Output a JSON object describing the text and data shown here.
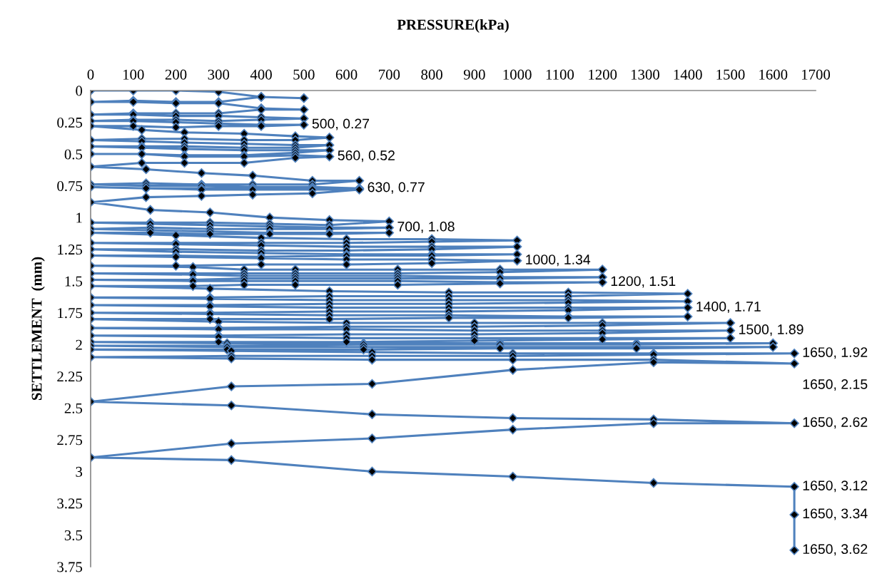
{
  "chart_data": {
    "type": "line",
    "xlabel": "PRESSURE(kPa)",
    "ylabel": "SETTLEMENT  (mm)",
    "xlim": [
      0,
      1700
    ],
    "xticks": [
      0,
      100,
      200,
      300,
      400,
      500,
      600,
      700,
      800,
      900,
      1000,
      1100,
      1200,
      1300,
      1400,
      1500,
      1600,
      1700
    ],
    "ylim": [
      3.75,
      0
    ],
    "yticks": [
      0,
      0.25,
      0.5,
      0.75,
      1,
      1.25,
      1.5,
      1.75,
      2,
      2.25,
      2.5,
      2.75,
      3,
      3.25,
      3.5,
      3.75
    ],
    "grid": false,
    "marker": "diamond",
    "line_style": "solid",
    "series": [
      {
        "color": "#4f81bd",
        "x": [
          0,
          100,
          200,
          300,
          400,
          500,
          400,
          300,
          200,
          100,
          0,
          100,
          200,
          300,
          400,
          500,
          400,
          300,
          200,
          100,
          0,
          100,
          200,
          300,
          400,
          500,
          400,
          300,
          200,
          100,
          0,
          100,
          200,
          300,
          400,
          500,
          400,
          300,
          200,
          100,
          0,
          120,
          220,
          360,
          480,
          560,
          480,
          360,
          220,
          120,
          0,
          120,
          220,
          360,
          480,
          560,
          480,
          360,
          220,
          120,
          0,
          120,
          220,
          360,
          480,
          560,
          480,
          360,
          220,
          120,
          0,
          120,
          220,
          360,
          480,
          560,
          480,
          360,
          220,
          120,
          0,
          130,
          260,
          380,
          520,
          630,
          520,
          380,
          260,
          130,
          0,
          130,
          260,
          380,
          520,
          630,
          520,
          380,
          260,
          130,
          0,
          130,
          260,
          380,
          520,
          630,
          520,
          380,
          260,
          130,
          0,
          140,
          280,
          420,
          560,
          700,
          560,
          420,
          280,
          140,
          0,
          140,
          280,
          420,
          560,
          700,
          560,
          420,
          280,
          140,
          0,
          140,
          280,
          420,
          560,
          700,
          560,
          420,
          280,
          140,
          0,
          200,
          400,
          600,
          800,
          1000,
          800,
          600,
          400,
          200,
          0,
          200,
          400,
          600,
          800,
          1000,
          800,
          600,
          400,
          200,
          0,
          200,
          400,
          600,
          800,
          1000,
          800,
          600,
          400,
          200,
          0,
          200,
          400,
          600,
          800,
          1000,
          800,
          600,
          400,
          200,
          0,
          240,
          360,
          480,
          720,
          960,
          1200,
          960,
          720,
          480,
          360,
          240,
          0,
          240,
          360,
          480,
          720,
          960,
          1200,
          960,
          720,
          480,
          360,
          240,
          0,
          240,
          360,
          480,
          720,
          960,
          1200,
          960,
          720,
          480,
          360,
          240,
          0,
          280,
          560,
          840,
          1120,
          1400,
          1120,
          840,
          560,
          280,
          0,
          280,
          560,
          840,
          1120,
          1400,
          1120,
          840,
          560,
          280,
          0,
          280,
          560,
          840,
          1120,
          1400,
          1120,
          840,
          560,
          280,
          0,
          280,
          560,
          840,
          1120,
          1400,
          1120,
          840,
          560,
          280,
          0,
          300,
          600,
          900,
          1200,
          1500,
          1200,
          900,
          600,
          300,
          0,
          300,
          600,
          900,
          1200,
          1500,
          1200,
          900,
          600,
          300,
          0,
          300,
          600,
          900,
          1200,
          1500,
          1200,
          900,
          600,
          300,
          0,
          320,
          640,
          960,
          1280,
          1600,
          1280,
          960,
          640,
          320,
          0,
          320,
          640,
          960,
          1280,
          1600,
          1280,
          960,
          640,
          320,
          0,
          330,
          660,
          990,
          1320,
          1650,
          1320,
          990,
          660,
          330,
          0,
          330,
          660,
          990,
          1320,
          1650,
          1320,
          990,
          660,
          330,
          0,
          330,
          660,
          990,
          1320,
          1650,
          1320,
          990,
          660,
          330,
          0,
          330,
          660,
          990,
          1320,
          1650,
          1650,
          1650
        ],
        "values": [
          0,
          0,
          0,
          0.01,
          0.05,
          0.06,
          0.05,
          0.09,
          0.09,
          0.08,
          0.09,
          0.09,
          0.1,
          0.1,
          0.14,
          0.15,
          0.15,
          0.18,
          0.18,
          0.18,
          0.19,
          0.19,
          0.2,
          0.2,
          0.21,
          0.22,
          0.23,
          0.24,
          0.23,
          0.23,
          0.24,
          0.24,
          0.25,
          0.26,
          0.27,
          0.27,
          0.28,
          0.28,
          0.29,
          0.28,
          0.28,
          0.31,
          0.33,
          0.34,
          0.36,
          0.37,
          0.39,
          0.39,
          0.38,
          0.38,
          0.39,
          0.4,
          0.41,
          0.42,
          0.43,
          0.43,
          0.45,
          0.45,
          0.44,
          0.44,
          0.44,
          0.45,
          0.46,
          0.47,
          0.47,
          0.47,
          0.49,
          0.51,
          0.51,
          0.5,
          0.5,
          0.5,
          0.52,
          0.52,
          0.51,
          0.52,
          0.53,
          0.57,
          0.57,
          0.57,
          0.6,
          0.62,
          0.65,
          0.67,
          0.71,
          0.71,
          0.74,
          0.74,
          0.74,
          0.73,
          0.74,
          0.75,
          0.75,
          0.76,
          0.76,
          0.77,
          0.77,
          0.77,
          0.77,
          0.77,
          0.76,
          0.77,
          0.78,
          0.78,
          0.78,
          0.78,
          0.81,
          0.82,
          0.83,
          0.84,
          0.88,
          0.94,
          0.96,
          1.0,
          1.02,
          1.03,
          1.06,
          1.05,
          1.04,
          1.04,
          1.04,
          1.05,
          1.06,
          1.07,
          1.08,
          1.08,
          1.09,
          1.09,
          1.09,
          1.08,
          1.09,
          1.1,
          1.11,
          1.12,
          1.12,
          1.12,
          1.13,
          1.13,
          1.13,
          1.12,
          1.12,
          1.14,
          1.16,
          1.17,
          1.17,
          1.18,
          1.19,
          1.2,
          1.2,
          1.2,
          1.2,
          1.21,
          1.22,
          1.23,
          1.23,
          1.23,
          1.25,
          1.26,
          1.26,
          1.25,
          1.25,
          1.27,
          1.28,
          1.29,
          1.29,
          1.29,
          1.3,
          1.3,
          1.31,
          1.3,
          1.3,
          1.31,
          1.32,
          1.33,
          1.33,
          1.34,
          1.36,
          1.37,
          1.37,
          1.38,
          1.38,
          1.39,
          1.41,
          1.41,
          1.41,
          1.41,
          1.41,
          1.43,
          1.44,
          1.44,
          1.44,
          1.44,
          1.44,
          1.45,
          1.46,
          1.46,
          1.46,
          1.47,
          1.47,
          1.48,
          1.48,
          1.48,
          1.48,
          1.49,
          1.49,
          1.5,
          1.5,
          1.5,
          1.5,
          1.51,
          1.51,
          1.52,
          1.53,
          1.53,
          1.53,
          1.54,
          1.54,
          1.56,
          1.58,
          1.59,
          1.59,
          1.6,
          1.62,
          1.62,
          1.62,
          1.63,
          1.63,
          1.64,
          1.65,
          1.65,
          1.65,
          1.66,
          1.67,
          1.68,
          1.68,
          1.69,
          1.69,
          1.7,
          1.71,
          1.71,
          1.71,
          1.71,
          1.73,
          1.74,
          1.74,
          1.75,
          1.75,
          1.76,
          1.77,
          1.77,
          1.78,
          1.78,
          1.79,
          1.79,
          1.8,
          1.8,
          1.8,
          1.82,
          1.83,
          1.83,
          1.83,
          1.83,
          1.85,
          1.86,
          1.86,
          1.87,
          1.87,
          1.88,
          1.88,
          1.89,
          1.89,
          1.89,
          1.91,
          1.92,
          1.92,
          1.93,
          1.93,
          1.94,
          1.95,
          1.95,
          1.95,
          1.95,
          1.96,
          1.97,
          1.98,
          1.98,
          1.98,
          1.99,
          1.99,
          1.99,
          1.99,
          1.99,
          2.0,
          2.0,
          2.0,
          2.01,
          2.01,
          2.02,
          2.02,
          2.02,
          2.02,
          2.02,
          2.03,
          2.03,
          2.04,
          2.04,
          2.04,
          2.05,
          2.06,
          2.07,
          2.07,
          2.07,
          2.08,
          2.09,
          2.09,
          2.09,
          2.1,
          2.11,
          2.12,
          2.12,
          2.12,
          2.15,
          2.14,
          2.2,
          2.31,
          2.33,
          2.45,
          2.48,
          2.55,
          2.58,
          2.59,
          2.62,
          2.62,
          2.67,
          2.74,
          2.78,
          2.89,
          2.91,
          3.0,
          3.04,
          3.09,
          3.12,
          3.34,
          3.62
        ]
      }
    ],
    "annotations": [
      {
        "text": "500, 0.27",
        "x": 500,
        "y": 0.27
      },
      {
        "text": "560, 0.52",
        "x": 560,
        "y": 0.52
      },
      {
        "text": "630, 0.77",
        "x": 630,
        "y": 0.77
      },
      {
        "text": "700, 1.08",
        "x": 700,
        "y": 1.08
      },
      {
        "text": "1000, 1.34",
        "x": 1000,
        "y": 1.34
      },
      {
        "text": "1200, 1.51",
        "x": 1200,
        "y": 1.51
      },
      {
        "text": "1400, 1.71",
        "x": 1400,
        "y": 1.71
      },
      {
        "text": "1500, 1.89",
        "x": 1500,
        "y": 1.89
      },
      {
        "text": "1650, 1.92",
        "x": 1650,
        "y": 2.07
      },
      {
        "text": "1650, 2.15",
        "x": 1650,
        "y": 2.15
      },
      {
        "text": "1650, 2.62",
        "x": 1650,
        "y": 2.62
      },
      {
        "text": "1650, 3.12",
        "x": 1650,
        "y": 3.12
      },
      {
        "text": "1650, 3.34",
        "x": 1650,
        "y": 3.34
      },
      {
        "text": "1650, 3.62",
        "x": 1650,
        "y": 3.62
      }
    ]
  }
}
